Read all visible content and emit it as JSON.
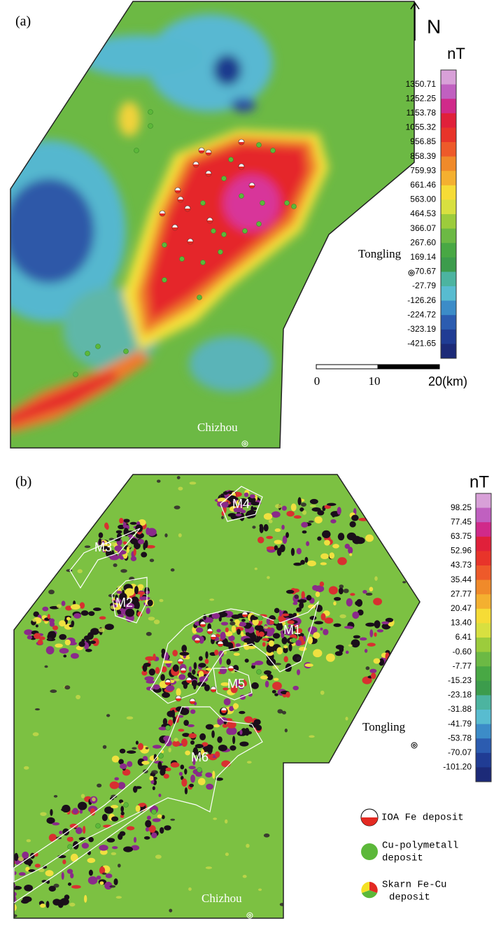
{
  "panel_a": {
    "label": "(a)",
    "north": "N",
    "unit": "nT",
    "colorbar": [
      "1350.71",
      "1252.25",
      "1153.78",
      "1055.32",
      "956.85",
      "858.39",
      "759.93",
      "661.46",
      "563.00",
      "464.53",
      "366.07",
      "267.60",
      "169.14",
      "70.67",
      "-27.79",
      "-126.26",
      "-224.72",
      "-323.19",
      "-421.65"
    ],
    "places": [
      "Tongling",
      "Chizhou"
    ],
    "scale": [
      "0",
      "10",
      "20(km)"
    ]
  },
  "panel_b": {
    "label": "(b)",
    "unit": "nT",
    "colorbar": [
      "98.25",
      "77.45",
      "63.75",
      "52.96",
      "43.73",
      "35.44",
      "27.77",
      "20.47",
      "13.40",
      "6.41",
      "-0.60",
      "-7.77",
      "-15.23",
      "-23.18",
      "-31.88",
      "-41.79",
      "-53.78",
      "-70.07",
      "-101.20"
    ],
    "zones": [
      "M1",
      "M2",
      "M3",
      "M4",
      "M5",
      "M6"
    ],
    "places": [
      "Tongling",
      "Chizhou"
    ]
  },
  "legend": [
    [
      "IOA Fe deposit"
    ],
    [
      "Cu-polymetall",
      "deposit"
    ],
    [
      "Skarn Fe-Cu",
      "deposit"
    ]
  ]
}
